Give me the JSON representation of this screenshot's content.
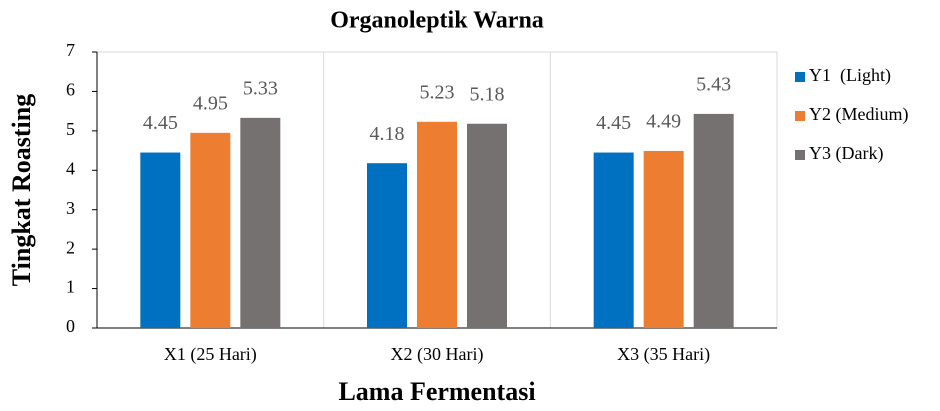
{
  "chart_data": {
    "type": "bar",
    "title": "Organoleptik Warna",
    "x_label": "Lama Fermentasi",
    "y_label": "Tingkat Roasting",
    "categories": [
      "X1 (25 Hari)",
      "X2 (30 Hari)",
      "X3 (35 Hari)"
    ],
    "series": [
      {
        "name": "Y1  (Light)",
        "color": "#0070c0",
        "values": [
          4.45,
          4.18,
          4.45
        ]
      },
      {
        "name": "Y2 (Medium)",
        "color": "#ed7d31",
        "values": [
          4.95,
          5.23,
          4.49
        ]
      },
      {
        "name": "Y3 (Dark)",
        "color": "#767171",
        "values": [
          5.33,
          5.18,
          5.43
        ]
      }
    ],
    "ylim": [
      0,
      7
    ],
    "yticks": [
      0,
      1,
      2,
      3,
      4,
      5,
      6,
      7
    ],
    "legend": "right"
  }
}
